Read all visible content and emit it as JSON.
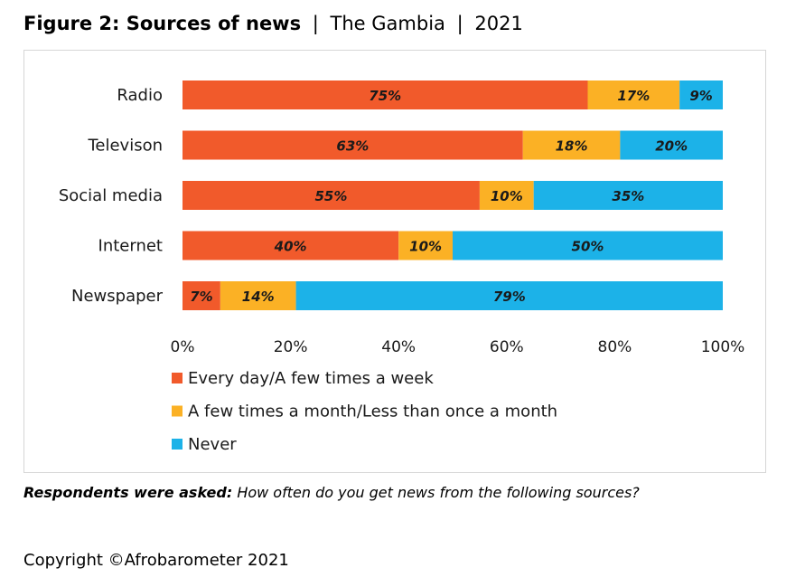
{
  "title": {
    "bold": "Figure 2: Sources of news",
    "separator": "|",
    "country": "The Gambia",
    "year": "2021"
  },
  "note": {
    "bold": "Respondents were asked:",
    "text": "How often do you get news from the following sources?"
  },
  "copyright": "Copyright ©Afrobarometer 2021",
  "chart_data": {
    "type": "bar",
    "orientation": "horizontal",
    "stacked": true,
    "categories": [
      "Radio",
      "Televison",
      "Social media",
      "Internet",
      "Newspaper"
    ],
    "series": [
      {
        "name": "Every day/A few times a week",
        "color": "#f15a2b",
        "values": [
          75,
          63,
          55,
          40,
          7
        ]
      },
      {
        "name": "A few times a month/Less than once a month",
        "color": "#fbb125",
        "values": [
          17,
          18,
          10,
          10,
          14
        ]
      },
      {
        "name": "Never",
        "color": "#1cb2e8",
        "values": [
          9,
          20,
          35,
          50,
          79
        ]
      }
    ],
    "xlim": [
      0,
      100
    ],
    "xticks": [
      "0%",
      "20%",
      "40%",
      "60%",
      "80%",
      "100%"
    ],
    "value_suffix": "%",
    "grid": false,
    "legend_position": "bottom-left"
  }
}
